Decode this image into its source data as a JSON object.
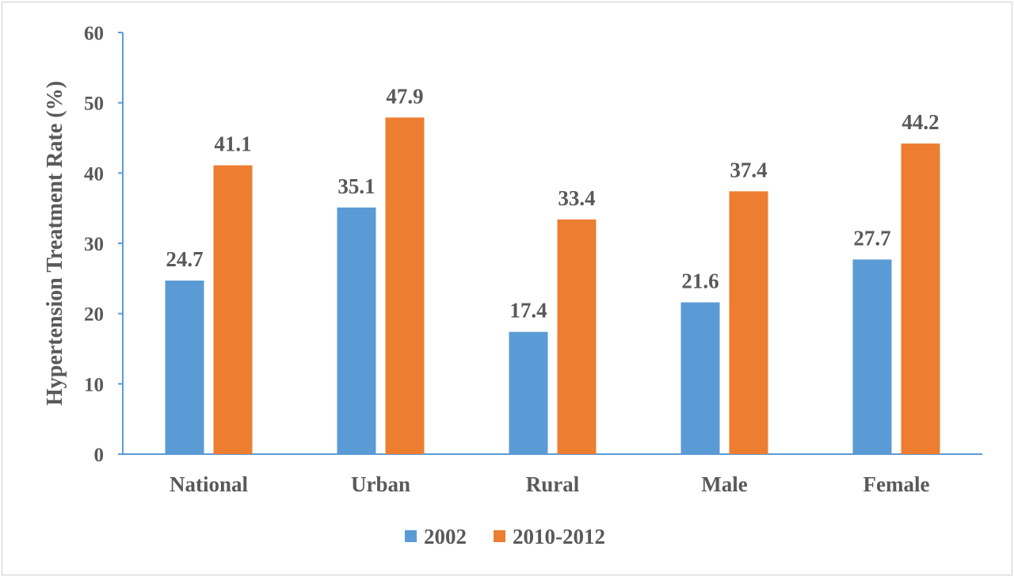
{
  "chart_data": {
    "type": "bar",
    "categories": [
      "National",
      "Urban",
      "Rural",
      "Male",
      "Female"
    ],
    "series": [
      {
        "name": "2002",
        "values": [
          24.7,
          35.1,
          17.4,
          21.6,
          27.7
        ],
        "color": "#5B9BD5"
      },
      {
        "name": "2010-2012",
        "values": [
          41.1,
          47.9,
          33.4,
          37.4,
          44.2
        ],
        "color": "#ED7D31"
      }
    ],
    "ylabel": "Hypertension Treatment Rate (%)",
    "xlabel": "",
    "ylim": [
      0,
      60
    ],
    "yticks": [
      0,
      10,
      20,
      30,
      40,
      50,
      60
    ],
    "grid": false,
    "legend": "bottom",
    "data_labels": true,
    "axis_color": "#5B9BD5"
  }
}
